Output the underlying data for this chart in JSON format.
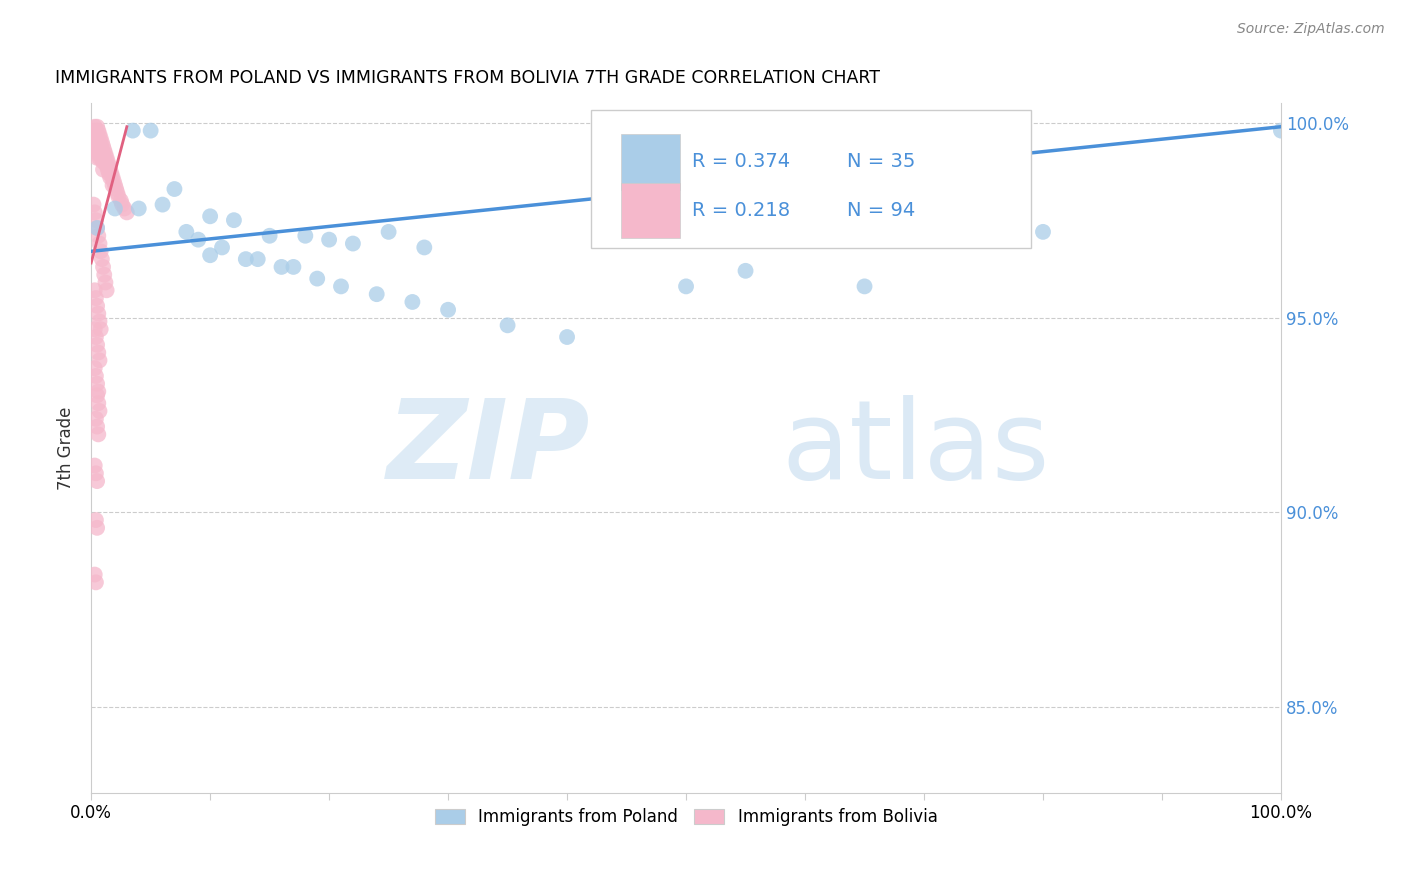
{
  "title": "IMMIGRANTS FROM POLAND VS IMMIGRANTS FROM BOLIVIA 7TH GRADE CORRELATION CHART",
  "source": "Source: ZipAtlas.com",
  "ylabel": "7th Grade",
  "y_ticks": [
    0.85,
    0.9,
    0.95,
    1.0
  ],
  "y_tick_labels": [
    "85.0%",
    "90.0%",
    "95.0%",
    "100.0%"
  ],
  "x_ticks": [
    0.0,
    0.1,
    0.2,
    0.3,
    0.4,
    0.5,
    0.6,
    0.7,
    0.8,
    0.9,
    1.0
  ],
  "watermark_zip": "ZIP",
  "watermark_atlas": "atlas",
  "legend_poland_r": "R = 0.374",
  "legend_poland_n": "N = 35",
  "legend_bolivia_r": "R = 0.218",
  "legend_bolivia_n": "N = 94",
  "poland_color": "#aacde8",
  "bolivia_color": "#f5b8cb",
  "poland_line_color": "#4a90d9",
  "bolivia_line_color": "#e06080",
  "poland_scatter_x": [
    0.005,
    0.02,
    0.035,
    0.05,
    0.07,
    0.1,
    0.12,
    0.15,
    0.18,
    0.2,
    0.22,
    0.25,
    0.28,
    0.1,
    0.13,
    0.17,
    0.08,
    0.09,
    0.11,
    0.14,
    0.16,
    0.19,
    0.21,
    0.24,
    0.27,
    0.3,
    0.35,
    0.4,
    0.5,
    0.55,
    0.65,
    0.8,
    1.0,
    0.04,
    0.06
  ],
  "poland_scatter_y": [
    0.973,
    0.978,
    0.998,
    0.998,
    0.983,
    0.976,
    0.975,
    0.971,
    0.971,
    0.97,
    0.969,
    0.972,
    0.968,
    0.966,
    0.965,
    0.963,
    0.972,
    0.97,
    0.968,
    0.965,
    0.963,
    0.96,
    0.958,
    0.956,
    0.954,
    0.952,
    0.948,
    0.945,
    0.958,
    0.962,
    0.958,
    0.972,
    0.998,
    0.978,
    0.979
  ],
  "bolivia_scatter_x": [
    0.001,
    0.002,
    0.003,
    0.003,
    0.004,
    0.004,
    0.004,
    0.005,
    0.005,
    0.005,
    0.005,
    0.005,
    0.006,
    0.006,
    0.006,
    0.006,
    0.007,
    0.007,
    0.007,
    0.007,
    0.008,
    0.008,
    0.008,
    0.009,
    0.009,
    0.009,
    0.01,
    0.01,
    0.01,
    0.01,
    0.011,
    0.011,
    0.012,
    0.012,
    0.013,
    0.013,
    0.014,
    0.014,
    0.015,
    0.015,
    0.016,
    0.016,
    0.017,
    0.018,
    0.018,
    0.019,
    0.02,
    0.021,
    0.022,
    0.023,
    0.025,
    0.026,
    0.028,
    0.03,
    0.002,
    0.003,
    0.004,
    0.005,
    0.006,
    0.007,
    0.008,
    0.009,
    0.01,
    0.011,
    0.012,
    0.013,
    0.003,
    0.004,
    0.005,
    0.006,
    0.007,
    0.008,
    0.003,
    0.004,
    0.005,
    0.006,
    0.007,
    0.003,
    0.004,
    0.005,
    0.006,
    0.005,
    0.006,
    0.007,
    0.004,
    0.005,
    0.006,
    0.003,
    0.004,
    0.005,
    0.004,
    0.005,
    0.003,
    0.004
  ],
  "bolivia_scatter_y": [
    0.995,
    0.998,
    0.999,
    0.997,
    0.998,
    0.996,
    0.994,
    0.999,
    0.997,
    0.995,
    0.993,
    0.991,
    0.998,
    0.996,
    0.994,
    0.992,
    0.997,
    0.995,
    0.993,
    0.991,
    0.996,
    0.994,
    0.992,
    0.995,
    0.993,
    0.991,
    0.994,
    0.992,
    0.99,
    0.988,
    0.993,
    0.991,
    0.992,
    0.99,
    0.991,
    0.989,
    0.99,
    0.988,
    0.989,
    0.987,
    0.988,
    0.986,
    0.987,
    0.986,
    0.984,
    0.985,
    0.984,
    0.983,
    0.982,
    0.981,
    0.98,
    0.979,
    0.978,
    0.977,
    0.979,
    0.977,
    0.975,
    0.973,
    0.971,
    0.969,
    0.967,
    0.965,
    0.963,
    0.961,
    0.959,
    0.957,
    0.957,
    0.955,
    0.953,
    0.951,
    0.949,
    0.947,
    0.947,
    0.945,
    0.943,
    0.941,
    0.939,
    0.937,
    0.935,
    0.933,
    0.931,
    0.93,
    0.928,
    0.926,
    0.924,
    0.922,
    0.92,
    0.912,
    0.91,
    0.908,
    0.898,
    0.896,
    0.884,
    0.882
  ],
  "poland_trend_x": [
    0.0,
    1.0
  ],
  "poland_trend_y": [
    0.967,
    0.999
  ],
  "bolivia_trend_x": [
    0.0,
    0.03
  ],
  "bolivia_trend_y": [
    0.964,
    0.999
  ],
  "xlim": [
    0.0,
    1.0
  ],
  "ylim": [
    0.828,
    1.005
  ]
}
